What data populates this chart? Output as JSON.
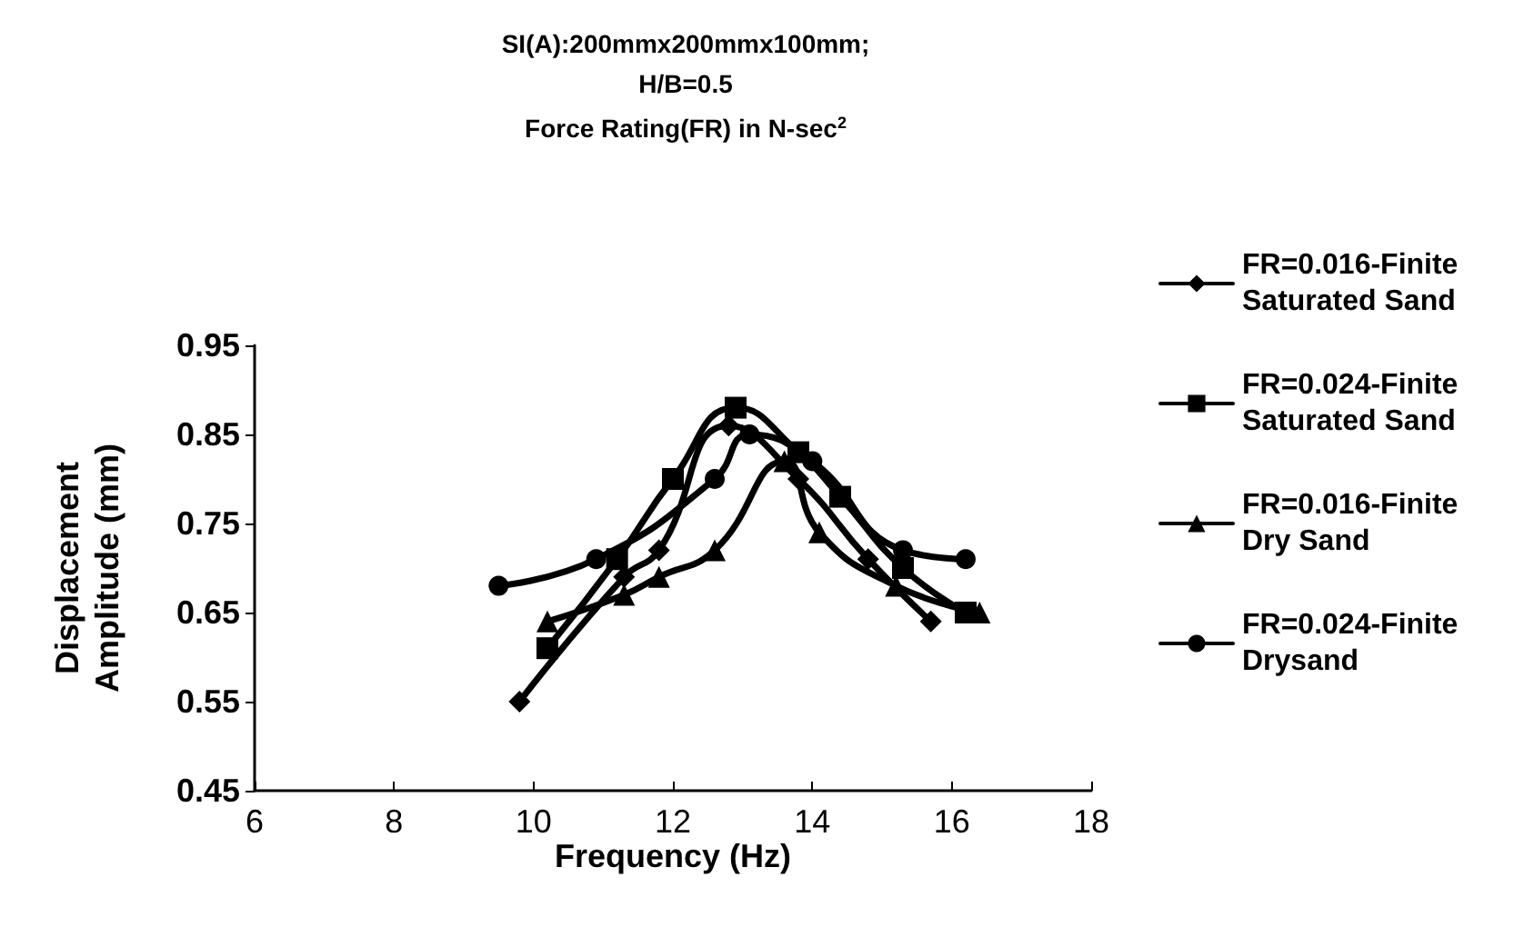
{
  "chart_data": {
    "type": "line",
    "title": "SI(A):200mmx200mmx100mm;\nH/B=0.5",
    "subtitle": "Force Rating(FR) in N-sec$^{2}$",
    "xlabel": "Frequency (Hz)",
    "ylabel": "Displacement\nAmplitude (mm)",
    "xlim": [
      6,
      18
    ],
    "xticks": [
      6,
      8,
      10,
      12,
      14,
      16,
      18
    ],
    "ylim": [
      0.45,
      0.95
    ],
    "yticks": [
      0.45,
      0.55,
      0.65,
      0.75,
      0.85,
      0.95
    ],
    "grid": false,
    "legend": "right",
    "line_style": "solid",
    "series": [
      {
        "name": "FR=0.016-Finite Saturated Sand",
        "color": "#000000",
        "marker": "diamond",
        "x": [
          9.8,
          11.3,
          11.8,
          12.8,
          13.8,
          14.8,
          15.7
        ],
        "values": [
          0.55,
          0.69,
          0.72,
          0.86,
          0.8,
          0.71,
          0.64
        ]
      },
      {
        "name": "FR=0.024-Finite Saturated Sand",
        "color": "#000000",
        "marker": "square",
        "x": [
          10.2,
          11.2,
          12.0,
          12.9,
          13.8,
          14.4,
          15.3,
          16.2
        ],
        "values": [
          0.61,
          0.71,
          0.8,
          0.88,
          0.83,
          0.78,
          0.7,
          0.65
        ]
      },
      {
        "name": "FR=0.016-Finite Dry Sand",
        "color": "#000000",
        "marker": "triangle",
        "x": [
          10.2,
          11.3,
          11.8,
          12.6,
          13.6,
          14.1,
          15.2,
          16.4
        ],
        "values": [
          0.64,
          0.67,
          0.69,
          0.72,
          0.82,
          0.74,
          0.68,
          0.65
        ]
      },
      {
        "name": "FR=0.024-Finite Drysand",
        "color": "#000000",
        "marker": "circle",
        "x": [
          9.5,
          10.9,
          12.6,
          13.1,
          14.0,
          15.3,
          16.2
        ],
        "values": [
          0.68,
          0.71,
          0.8,
          0.85,
          0.82,
          0.72,
          0.71
        ]
      }
    ]
  }
}
